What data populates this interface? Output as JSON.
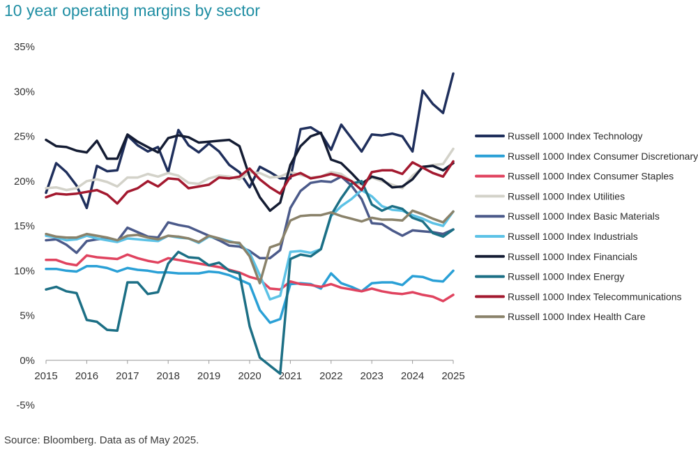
{
  "title": "10 year operating margins by sector",
  "source": "Source: Bloomberg. Data as of May 2025.",
  "chart_data": {
    "type": "line",
    "title": "10 year operating margins by sector",
    "xlabel": "",
    "ylabel": "",
    "xlim": [
      2015,
      2025
    ],
    "ylim": [
      -5,
      35
    ],
    "y_ticks": [
      35,
      30,
      25,
      20,
      15,
      10,
      5,
      0,
      -5
    ],
    "y_tick_labels": [
      "35%",
      "30%",
      "25%",
      "20%",
      "15%",
      "10%",
      "5%",
      "0%",
      "-5%"
    ],
    "x_ticks": [
      2015,
      2016,
      2017,
      2018,
      2019,
      2020,
      2021,
      2022,
      2023,
      2024,
      2025
    ],
    "x_tick_labels": [
      "2015",
      "2016",
      "2017",
      "2018",
      "2019",
      "2020",
      "2021",
      "2022",
      "2023",
      "2024",
      "2025"
    ],
    "legend_position": "right",
    "series": [
      {
        "name": "Russell 1000 Index Technology",
        "color": "#1f2f5c",
        "x": [
          2015,
          2015.25,
          2015.5,
          2015.75,
          2016,
          2016.25,
          2016.5,
          2016.75,
          2017,
          2017.25,
          2017.5,
          2017.75,
          2018,
          2018.25,
          2018.5,
          2018.75,
          2019,
          2019.25,
          2019.5,
          2019.75,
          2020,
          2020.25,
          2020.5,
          2020.75,
          2021,
          2021.25,
          2021.5,
          2021.75,
          2022,
          2022.25,
          2022.5,
          2022.75,
          2023,
          2023.25,
          2023.5,
          2023.75,
          2024,
          2024.25,
          2024.5,
          2024.75,
          2025
        ],
        "y": [
          18.7,
          22.0,
          21.0,
          19.5,
          17.0,
          21.7,
          21.1,
          21.2,
          25.1,
          24.0,
          23.3,
          23.8,
          21.0,
          25.7,
          24.0,
          23.2,
          24.2,
          23.3,
          21.8,
          21.0,
          19.3,
          21.6,
          21.0,
          20.3,
          20.3,
          25.8,
          26.0,
          25.3,
          23.5,
          26.3,
          24.8,
          23.3,
          25.2,
          25.1,
          25.3,
          25.0,
          23.3,
          30.1,
          28.6,
          27.6,
          32.0
        ]
      },
      {
        "name": "Russell 1000 Index Consumer Discretionary",
        "color": "#2aa0d6",
        "x": [
          2015,
          2015.25,
          2015.5,
          2015.75,
          2016,
          2016.25,
          2016.5,
          2016.75,
          2017,
          2017.25,
          2017.5,
          2017.75,
          2018,
          2018.25,
          2018.5,
          2018.75,
          2019,
          2019.25,
          2019.5,
          2019.75,
          2020,
          2020.25,
          2020.5,
          2020.75,
          2021,
          2021.25,
          2021.5,
          2021.75,
          2022,
          2022.25,
          2022.5,
          2022.75,
          2023,
          2023.25,
          2023.5,
          2023.75,
          2024,
          2024.25,
          2024.5,
          2024.75,
          2025
        ],
        "y": [
          10.2,
          10.2,
          10.0,
          9.9,
          10.5,
          10.5,
          10.3,
          9.9,
          10.3,
          10.1,
          10.0,
          9.8,
          9.8,
          9.7,
          9.7,
          9.7,
          9.9,
          9.8,
          9.5,
          9.0,
          8.5,
          5.6,
          4.2,
          4.6,
          8.5,
          8.6,
          8.5,
          8.0,
          9.7,
          8.6,
          8.2,
          7.7,
          8.6,
          8.7,
          8.7,
          8.4,
          9.4,
          9.3,
          8.9,
          8.8,
          10.0
        ]
      },
      {
        "name": "Russell 1000 Index Consumer Staples",
        "color": "#e0435f",
        "x": [
          2015,
          2015.25,
          2015.5,
          2015.75,
          2016,
          2016.25,
          2016.5,
          2016.75,
          2017,
          2017.25,
          2017.5,
          2017.75,
          2018,
          2018.25,
          2018.5,
          2018.75,
          2019,
          2019.25,
          2019.5,
          2019.75,
          2020,
          2020.25,
          2020.5,
          2020.75,
          2021,
          2021.25,
          2021.5,
          2021.75,
          2022,
          2022.25,
          2022.5,
          2022.75,
          2023,
          2023.25,
          2023.5,
          2023.75,
          2024,
          2024.25,
          2024.5,
          2024.75,
          2025
        ],
        "y": [
          11.2,
          11.2,
          10.8,
          10.6,
          11.7,
          11.5,
          11.4,
          11.3,
          11.8,
          11.4,
          11.1,
          10.9,
          11.4,
          11.2,
          11.0,
          10.8,
          10.6,
          10.4,
          10.1,
          9.8,
          9.3,
          9.0,
          8.0,
          7.9,
          8.8,
          8.5,
          8.4,
          8.2,
          8.5,
          8.1,
          7.9,
          7.7,
          8.0,
          7.7,
          7.5,
          7.4,
          7.6,
          7.3,
          7.1,
          6.6,
          7.3
        ]
      },
      {
        "name": "Russell 1000 Index Utilities",
        "color": "#d3d2c9",
        "x": [
          2015,
          2015.25,
          2015.5,
          2015.75,
          2016,
          2016.25,
          2016.5,
          2016.75,
          2017,
          2017.25,
          2017.5,
          2017.75,
          2018,
          2018.25,
          2018.5,
          2018.75,
          2019,
          2019.25,
          2019.5,
          2019.75,
          2020,
          2020.25,
          2020.5,
          2020.75,
          2021,
          2021.25,
          2021.5,
          2021.75,
          2022,
          2022.25,
          2022.5,
          2022.75,
          2023,
          2023.25,
          2023.5,
          2023.75,
          2024,
          2024.25,
          2024.5,
          2024.75,
          2025
        ],
        "y": [
          19.2,
          19.3,
          19.0,
          19.2,
          20.0,
          20.2,
          19.9,
          19.4,
          20.4,
          20.4,
          20.8,
          20.5,
          20.9,
          20.6,
          19.8,
          19.7,
          20.3,
          20.6,
          20.5,
          20.2,
          21.0,
          20.9,
          20.4,
          20.5,
          21.0,
          20.7,
          20.4,
          20.5,
          21.0,
          20.8,
          20.0,
          19.6,
          20.4,
          20.0,
          19.6,
          19.2,
          20.6,
          21.5,
          21.8,
          21.9,
          23.6
        ]
      },
      {
        "name": "Russell 1000 Index Basic Materials",
        "color": "#4b5a8a",
        "x": [
          2015,
          2015.25,
          2015.5,
          2015.75,
          2016,
          2016.25,
          2016.5,
          2016.75,
          2017,
          2017.25,
          2017.5,
          2017.75,
          2018,
          2018.25,
          2018.5,
          2018.75,
          2019,
          2019.25,
          2019.5,
          2019.75,
          2020,
          2020.25,
          2020.5,
          2020.75,
          2021,
          2021.25,
          2021.5,
          2021.75,
          2022,
          2022.25,
          2022.5,
          2022.75,
          2023,
          2023.25,
          2023.5,
          2023.75,
          2024,
          2024.25,
          2024.5,
          2024.75,
          2025
        ],
        "y": [
          13.4,
          13.5,
          12.9,
          12.0,
          13.3,
          13.5,
          13.6,
          13.3,
          14.8,
          14.3,
          13.8,
          13.7,
          15.4,
          15.1,
          14.9,
          14.4,
          13.9,
          13.4,
          12.8,
          12.7,
          12.2,
          11.4,
          11.4,
          12.3,
          17.0,
          18.9,
          19.8,
          20.0,
          19.9,
          20.5,
          19.5,
          18.0,
          15.3,
          15.2,
          14.5,
          13.9,
          14.5,
          14.4,
          14.3,
          14.1,
          14.6
        ]
      },
      {
        "name": "Russell 1000 Index Industrials",
        "color": "#5cc2e6",
        "x": [
          2015,
          2015.25,
          2015.5,
          2015.75,
          2016,
          2016.25,
          2016.5,
          2016.75,
          2017,
          2017.25,
          2017.5,
          2017.75,
          2018,
          2018.25,
          2018.5,
          2018.75,
          2019,
          2019.25,
          2019.5,
          2019.75,
          2020,
          2020.25,
          2020.5,
          2020.75,
          2021,
          2021.25,
          2021.5,
          2021.75,
          2022,
          2022.25,
          2022.5,
          2022.75,
          2023,
          2023.25,
          2023.5,
          2023.75,
          2024,
          2024.25,
          2024.5,
          2024.75,
          2025
        ],
        "y": [
          13.9,
          13.7,
          13.4,
          13.5,
          13.9,
          13.6,
          13.4,
          13.2,
          13.6,
          13.5,
          13.4,
          13.3,
          13.9,
          13.7,
          13.6,
          13.1,
          13.8,
          13.6,
          13.3,
          13.0,
          12.0,
          9.5,
          6.8,
          7.2,
          12.1,
          12.2,
          12.0,
          12.4,
          16.1,
          17.2,
          18.0,
          19.0,
          18.3,
          17.2,
          16.8,
          16.7,
          16.2,
          15.8,
          15.3,
          15.0,
          16.6
        ]
      },
      {
        "name": "Russell 1000 Index Financials",
        "color": "#141c33",
        "x": [
          2015,
          2015.25,
          2015.5,
          2015.75,
          2016,
          2016.25,
          2016.5,
          2016.75,
          2017,
          2017.25,
          2017.5,
          2017.75,
          2018,
          2018.25,
          2018.5,
          2018.75,
          2019,
          2019.25,
          2019.5,
          2019.75,
          2020,
          2020.25,
          2020.5,
          2020.75,
          2021,
          2021.25,
          2021.5,
          2021.75,
          2022,
          2022.25,
          2022.5,
          2022.75,
          2023,
          2023.25,
          2023.5,
          2023.75,
          2024,
          2024.25,
          2024.5,
          2024.75,
          2025
        ],
        "y": [
          24.6,
          23.9,
          23.8,
          23.4,
          23.2,
          24.5,
          22.5,
          22.5,
          25.2,
          24.4,
          23.8,
          23.2,
          24.8,
          25.1,
          24.9,
          24.3,
          24.4,
          24.5,
          24.6,
          23.9,
          20.5,
          18.2,
          16.7,
          17.6,
          21.8,
          23.9,
          25.0,
          25.4,
          22.4,
          22.0,
          20.9,
          19.7,
          20.5,
          20.2,
          19.3,
          19.4,
          20.2,
          21.6,
          21.7,
          21.2,
          22.0
        ]
      },
      {
        "name": "Russell 1000 Index Energy",
        "color": "#1c6f85",
        "x": [
          2015,
          2015.25,
          2015.5,
          2015.75,
          2016,
          2016.25,
          2016.5,
          2016.75,
          2017,
          2017.25,
          2017.5,
          2017.75,
          2018,
          2018.25,
          2018.5,
          2018.75,
          2019,
          2019.25,
          2019.5,
          2019.75,
          2020,
          2020.25,
          2020.5,
          2020.75,
          2021,
          2021.25,
          2021.5,
          2021.75,
          2022,
          2022.25,
          2022.5,
          2022.75,
          2023,
          2023.25,
          2023.5,
          2023.75,
          2024,
          2024.25,
          2024.5,
          2024.75,
          2025
        ],
        "y": [
          7.9,
          8.2,
          7.7,
          7.5,
          4.5,
          4.3,
          3.4,
          3.3,
          8.7,
          8.7,
          7.4,
          7.6,
          10.8,
          12.1,
          11.5,
          11.4,
          10.6,
          10.9,
          10.0,
          9.7,
          3.8,
          0.3,
          -0.6,
          -1.5,
          11.3,
          11.8,
          11.6,
          12.4,
          16.2,
          18.1,
          19.7,
          20.0,
          17.4,
          16.7,
          17.2,
          16.9,
          15.9,
          15.5,
          14.2,
          13.8,
          14.6
        ]
      },
      {
        "name": "Russell 1000 Index Telecommunications",
        "color": "#a3192f",
        "x": [
          2015,
          2015.25,
          2015.5,
          2015.75,
          2016,
          2016.25,
          2016.5,
          2016.75,
          2017,
          2017.25,
          2017.5,
          2017.75,
          2018,
          2018.25,
          2018.5,
          2018.75,
          2019,
          2019.25,
          2019.5,
          2019.75,
          2020,
          2020.25,
          2020.5,
          2020.75,
          2021,
          2021.25,
          2021.5,
          2021.75,
          2022,
          2022.25,
          2022.5,
          2022.75,
          2023,
          2023.25,
          2023.5,
          2023.75,
          2024,
          2024.25,
          2024.5,
          2024.75,
          2025
        ],
        "y": [
          18.2,
          18.6,
          18.5,
          18.6,
          18.8,
          19.0,
          18.5,
          17.5,
          18.8,
          19.2,
          20.0,
          19.4,
          20.3,
          20.2,
          19.2,
          19.4,
          19.6,
          20.4,
          20.3,
          20.5,
          21.4,
          20.2,
          19.3,
          18.6,
          20.5,
          20.9,
          20.3,
          20.5,
          20.8,
          20.5,
          20.0,
          19.0,
          21.0,
          21.2,
          21.2,
          20.8,
          22.1,
          21.5,
          20.9,
          20.5,
          22.2
        ]
      },
      {
        "name": "Russell 1000 Index Health Care",
        "color": "#8a826a",
        "x": [
          2015,
          2015.25,
          2015.5,
          2015.75,
          2016,
          2016.25,
          2016.5,
          2016.75,
          2017,
          2017.25,
          2017.5,
          2017.75,
          2018,
          2018.25,
          2018.5,
          2018.75,
          2019,
          2019.25,
          2019.5,
          2019.75,
          2020,
          2020.25,
          2020.5,
          2020.75,
          2021,
          2021.25,
          2021.5,
          2021.75,
          2022,
          2022.25,
          2022.5,
          2022.75,
          2023,
          2023.25,
          2023.5,
          2023.75,
          2024,
          2024.25,
          2024.5,
          2024.75,
          2025
        ],
        "y": [
          14.1,
          13.8,
          13.7,
          13.7,
          14.1,
          13.9,
          13.7,
          13.4,
          13.9,
          14.0,
          13.7,
          13.5,
          13.9,
          13.8,
          13.6,
          13.2,
          13.9,
          13.6,
          13.2,
          13.1,
          11.6,
          8.6,
          12.6,
          13.0,
          15.6,
          16.1,
          16.2,
          16.2,
          16.5,
          16.1,
          15.8,
          15.5,
          15.9,
          15.7,
          15.7,
          15.6,
          16.7,
          16.3,
          15.8,
          15.4,
          16.6
        ]
      }
    ]
  }
}
